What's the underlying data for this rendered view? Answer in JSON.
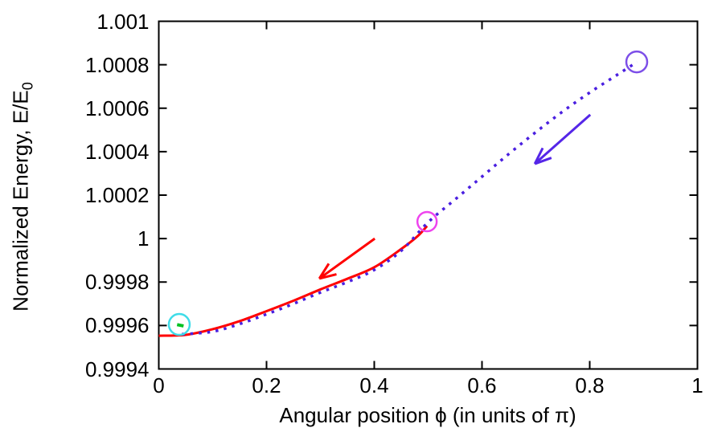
{
  "figure": {
    "background": "#ffffff",
    "axis_color": "#000000",
    "text_color": "#000000"
  },
  "chart_data": {
    "type": "line",
    "title": "",
    "xlabel": "Angular position ϕ (in units of π)",
    "ylabel_main": "Normalized Energy, E/E",
    "ylabel_sub": "0",
    "xlim": [
      0,
      1
    ],
    "ylim": [
      0.9994,
      1.001
    ],
    "grid": false,
    "legend": "none",
    "border_box": true,
    "x_ticks": [
      {
        "value": 0.0,
        "label": "0"
      },
      {
        "value": 0.2,
        "label": "0.2"
      },
      {
        "value": 0.4,
        "label": "0.4"
      },
      {
        "value": 0.6,
        "label": "0.6"
      },
      {
        "value": 0.8,
        "label": "0.8"
      },
      {
        "value": 1.0,
        "label": "1"
      }
    ],
    "y_ticks": [
      {
        "value": 0.9994,
        "label": "0.9994"
      },
      {
        "value": 0.9996,
        "label": "0.9996"
      },
      {
        "value": 0.9998,
        "label": "0.9998"
      },
      {
        "value": 1.0,
        "label": "1"
      },
      {
        "value": 1.0002,
        "label": "1.0002"
      },
      {
        "value": 1.0004,
        "label": "1.0004"
      },
      {
        "value": 1.0006,
        "label": "1.0006"
      },
      {
        "value": 1.0008,
        "label": "1.0008"
      },
      {
        "value": 1.001,
        "label": "1.001"
      }
    ],
    "series": [
      {
        "name": "energy-forward-curve",
        "color": "#ff0000",
        "style": "solid",
        "stroke_width": 3,
        "points": [
          [
            0.0,
            0.999553
          ],
          [
            0.05,
            0.999557
          ],
          [
            0.1,
            0.999583
          ],
          [
            0.15,
            0.99962
          ],
          [
            0.2,
            0.999666
          ],
          [
            0.25,
            0.999714
          ],
          [
            0.3,
            0.999766
          ],
          [
            0.35,
            0.999815
          ],
          [
            0.4,
            0.999868
          ],
          [
            0.45,
            0.999952
          ],
          [
            0.48,
            1.00001
          ],
          [
            0.498,
            1.000058
          ]
        ]
      },
      {
        "name": "energy-return-curve",
        "color": "#4a1fe0",
        "style": "dashed",
        "stroke_width": 3.5,
        "points": [
          [
            0.043,
            0.99956
          ],
          [
            0.1,
            0.999572
          ],
          [
            0.15,
            0.999607
          ],
          [
            0.2,
            0.999652
          ],
          [
            0.25,
            0.9997
          ],
          [
            0.3,
            0.999752
          ],
          [
            0.35,
            0.9998
          ],
          [
            0.4,
            0.999856
          ],
          [
            0.45,
            0.999944
          ],
          [
            0.5,
            1.000075
          ],
          [
            0.55,
            1.00018
          ],
          [
            0.6,
            1.000285
          ],
          [
            0.65,
            1.00039
          ],
          [
            0.7,
            1.00049
          ],
          [
            0.75,
            1.000585
          ],
          [
            0.8,
            1.000672
          ],
          [
            0.85,
            1.000752
          ],
          [
            0.888,
            1.000813
          ]
        ]
      },
      {
        "name": "endpoint-green-segment",
        "color": "#00c222",
        "style": "solid",
        "stroke_width": 4,
        "points": [
          [
            0.034,
            0.999604
          ],
          [
            0.046,
            0.999598
          ]
        ]
      }
    ],
    "markers": [
      {
        "name": "start-marker-cyan",
        "x": 0.038,
        "y": 0.999605,
        "r": 13,
        "color": "#3fdce8",
        "stroke_width": 2.5
      },
      {
        "name": "start-marker-magenta",
        "x": 0.498,
        "y": 1.000078,
        "r": 12,
        "color": "#ee44ee",
        "stroke_width": 2.5
      },
      {
        "name": "start-marker-purple",
        "x": 0.8873,
        "y": 1.000813,
        "r": 13,
        "color": "#7d4fe8",
        "stroke_width": 2.5
      }
    ],
    "arrows": [
      {
        "name": "red-direction-arrow",
        "color": "#ff0000",
        "stroke_width": 3,
        "from": [
          0.401,
          1.0
        ],
        "to": [
          0.298,
          0.999816
        ]
      },
      {
        "name": "violet-direction-arrow",
        "color": "#5526e8",
        "stroke_width": 3,
        "from": [
          0.801,
          1.00057
        ],
        "to": [
          0.698,
          1.000344
        ]
      }
    ]
  }
}
